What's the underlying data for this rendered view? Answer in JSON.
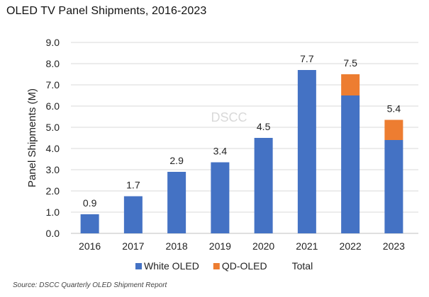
{
  "title": "OLED TV Panel Shipments, 2016-2023",
  "source": "Source: DSCC Quarterly OLED Shipment Report",
  "watermark": "DSCC",
  "colors": {
    "white_oled": "#4472C4",
    "qd_oled": "#ED7D31",
    "gridline": "#d9d9d9",
    "axis": "#bfbfbf"
  },
  "chart_data": {
    "type": "bar",
    "stacked": true,
    "categories": [
      "2016",
      "2017",
      "2018",
      "2019",
      "2020",
      "2021",
      "2022",
      "2023"
    ],
    "series": [
      {
        "name": "White OLED",
        "values": [
          0.9,
          1.75,
          2.9,
          3.35,
          4.5,
          7.7,
          6.5,
          4.4
        ]
      },
      {
        "name": "QD-OLED",
        "values": [
          0,
          0,
          0,
          0,
          0,
          0,
          1.0,
          0.95
        ]
      }
    ],
    "totals_label": "Total",
    "total_labels": [
      "0.9",
      "1.7",
      "2.9",
      "3.4",
      "4.5",
      "7.7",
      "7.5",
      "5.4"
    ],
    "ylabel": "Panel Shipments (M)",
    "ylim": [
      0,
      9
    ],
    "yticks": [
      "0.0",
      "1.0",
      "2.0",
      "3.0",
      "4.0",
      "5.0",
      "6.0",
      "7.0",
      "8.0",
      "9.0"
    ],
    "grid": true,
    "legend": "bottom"
  }
}
